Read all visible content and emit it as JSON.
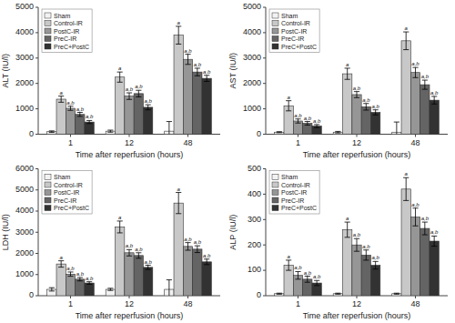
{
  "chart_data": [
    {
      "type": "bar",
      "x_label": "Time after reperfusion (hours)",
      "y_label": "ALT (IU/l)",
      "categories": [
        "1",
        "12",
        "48"
      ],
      "ylim": [
        0,
        5000
      ],
      "yticks": [
        0,
        1000,
        2000,
        3000,
        4000,
        5000
      ],
      "legend": "upper left",
      "series": [
        {
          "name": "Sham",
          "color": "#f2f2f2",
          "values": [
            100,
            120,
            120
          ],
          "errors": [
            30,
            40,
            380
          ]
        },
        {
          "name": "Control-IR",
          "color": "#c8c8c8",
          "values": [
            1380,
            2250,
            3900
          ],
          "errors": [
            120,
            200,
            350
          ],
          "annotations": [
            "a",
            "a",
            "a"
          ]
        },
        {
          "name": "PostC-IR",
          "color": "#969696",
          "values": [
            1020,
            1500,
            2950
          ],
          "errors": [
            80,
            130,
            200
          ],
          "annotations": [
            "a,b",
            "a,b",
            "a,b"
          ]
        },
        {
          "name": "PreC-IR",
          "color": "#646464",
          "values": [
            780,
            1600,
            2450
          ],
          "errors": [
            80,
            130,
            150
          ],
          "annotations": [
            "a,b",
            "a,b",
            "a,b"
          ]
        },
        {
          "name": "PreC+PostC",
          "color": "#323232",
          "values": [
            480,
            1060,
            2200
          ],
          "errors": [
            60,
            100,
            120
          ],
          "annotations": [
            "a,b",
            "a,b",
            "a,b"
          ]
        }
      ]
    },
    {
      "type": "bar",
      "x_label": "Time after reperfusion (hours)",
      "y_label": "AST (IU/l)",
      "categories": [
        "1",
        "12",
        "48"
      ],
      "ylim": [
        0,
        5000
      ],
      "yticks": [
        0,
        1000,
        2000,
        3000,
        4000,
        5000
      ],
      "legend": "upper left",
      "series": [
        {
          "name": "Sham",
          "color": "#f2f2f2",
          "values": [
            80,
            80,
            80
          ],
          "errors": [
            20,
            30,
            400
          ]
        },
        {
          "name": "Control-IR",
          "color": "#c8c8c8",
          "values": [
            1120,
            2380,
            3680
          ],
          "errors": [
            200,
            220,
            350
          ],
          "annotations": [
            "a",
            "a",
            "a"
          ]
        },
        {
          "name": "PostC-IR",
          "color": "#969696",
          "values": [
            520,
            1560,
            2430
          ],
          "errors": [
            80,
            120,
            200
          ],
          "annotations": [
            "a,b",
            "a,b",
            "a,b"
          ]
        },
        {
          "name": "PreC-IR",
          "color": "#646464",
          "values": [
            430,
            1080,
            1950
          ],
          "errors": [
            70,
            130,
            180
          ],
          "annotations": [
            "a,b",
            "a,b",
            "a,b"
          ]
        },
        {
          "name": "PreC+PostC",
          "color": "#323232",
          "values": [
            320,
            860,
            1340
          ],
          "errors": [
            60,
            100,
            150
          ],
          "annotations": [
            "a,b",
            "a,b",
            "a,b"
          ]
        }
      ]
    },
    {
      "type": "bar",
      "x_label": "Time after reperfusion (hours)",
      "y_label": "LDH (IU/l)",
      "categories": [
        "1",
        "12",
        "48"
      ],
      "ylim": [
        0,
        6000
      ],
      "yticks": [
        0,
        1000,
        2000,
        3000,
        4000,
        5000,
        6000
      ],
      "legend": "upper left",
      "series": [
        {
          "name": "Sham",
          "color": "#f2f2f2",
          "values": [
            300,
            300,
            300
          ],
          "errors": [
            80,
            50,
            450
          ]
        },
        {
          "name": "Control-IR",
          "color": "#c8c8c8",
          "values": [
            1500,
            3250,
            4380
          ],
          "errors": [
            150,
            280,
            500
          ],
          "annotations": [
            "a",
            "a",
            "a"
          ]
        },
        {
          "name": "PostC-IR",
          "color": "#969696",
          "values": [
            1020,
            2030,
            2330
          ],
          "errors": [
            100,
            150,
            180
          ],
          "annotations": [
            "a,b",
            "a,b",
            "a,b"
          ]
        },
        {
          "name": "PreC-IR",
          "color": "#646464",
          "values": [
            780,
            1900,
            2200
          ],
          "errors": [
            80,
            130,
            160
          ],
          "annotations": [
            "a,b",
            "a,b",
            "a,b"
          ]
        },
        {
          "name": "PreC+PostC",
          "color": "#323232",
          "values": [
            600,
            1340,
            1600
          ],
          "errors": [
            60,
            100,
            130
          ],
          "annotations": [
            "a,b",
            "a,b",
            "a,b"
          ]
        }
      ]
    },
    {
      "type": "bar",
      "x_label": "Time after reperfusion (hours)",
      "y_label": "ALP (IU/l)",
      "categories": [
        "1",
        "12",
        "48"
      ],
      "ylim": [
        0,
        500
      ],
      "yticks": [
        0,
        100,
        200,
        300,
        400,
        500
      ],
      "legend": "upper left",
      "series": [
        {
          "name": "Sham",
          "color": "#f2f2f2",
          "values": [
            8,
            8,
            8
          ],
          "errors": [
            2,
            2,
            2
          ]
        },
        {
          "name": "Control-IR",
          "color": "#c8c8c8",
          "values": [
            120,
            260,
            420
          ],
          "errors": [
            20,
            30,
            45
          ],
          "annotations": [
            "a",
            "a",
            "a"
          ]
        },
        {
          "name": "PostC-IR",
          "color": "#969696",
          "values": [
            80,
            200,
            310
          ],
          "errors": [
            15,
            25,
            35
          ],
          "annotations": [
            "a,b",
            "a,b",
            "a,b"
          ]
        },
        {
          "name": "PreC-IR",
          "color": "#646464",
          "values": [
            65,
            160,
            265
          ],
          "errors": [
            12,
            20,
            25
          ],
          "annotations": [
            "a,b",
            "a,b",
            "a,b"
          ]
        },
        {
          "name": "PreC+PostC",
          "color": "#323232",
          "values": [
            50,
            120,
            215
          ],
          "errors": [
            10,
            15,
            20
          ],
          "annotations": [
            "a,b",
            "a,b",
            "a,b"
          ]
        }
      ]
    }
  ]
}
